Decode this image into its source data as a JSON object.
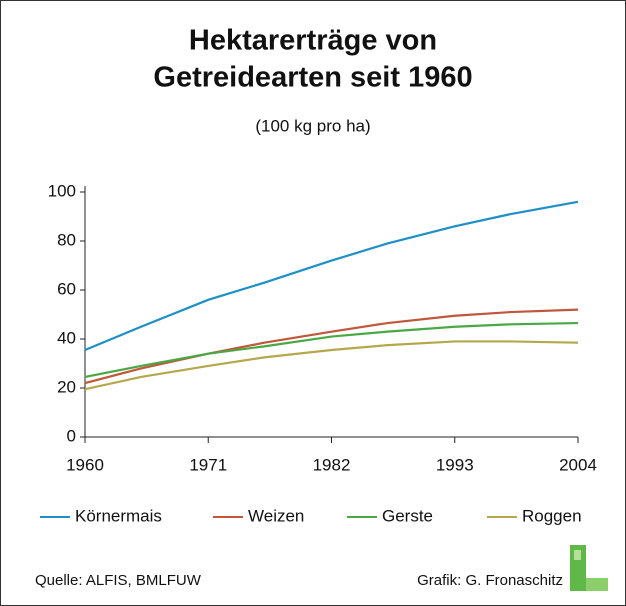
{
  "chart_data": {
    "type": "line",
    "title": [
      "Hektarerträge von",
      "Getreidearten seit 1960"
    ],
    "subtitle": "(100 kg pro ha)",
    "x": [
      1960,
      1965,
      1971,
      1976,
      1982,
      1987,
      1993,
      1998,
      2004
    ],
    "series": [
      {
        "name": "Körnermais",
        "color": "#1f8fc8",
        "values": [
          35.5,
          45,
          56,
          63,
          72,
          79,
          86,
          91,
          96
        ]
      },
      {
        "name": "Weizen",
        "color": "#c0573a",
        "values": [
          22,
          28,
          34,
          38.5,
          43,
          46.5,
          49.5,
          51,
          52
        ]
      },
      {
        "name": "Gerste",
        "color": "#4aa844",
        "values": [
          24.5,
          29,
          34,
          37,
          41,
          43,
          45,
          46,
          46.5
        ]
      },
      {
        "name": "Roggen",
        "color": "#b5a84c",
        "values": [
          19.5,
          24.5,
          29,
          32.5,
          35.5,
          37.5,
          39,
          39,
          38.5
        ]
      }
    ],
    "xlim": [
      1960,
      2004
    ],
    "xticks": [
      1960,
      1971,
      1982,
      1993,
      2004
    ],
    "ylim": [
      0,
      100
    ],
    "yticks": [
      0,
      20,
      40,
      60,
      80,
      100
    ],
    "source": "Quelle: ALFIS, BMLFUW",
    "credit": "Grafik: G. Fronaschitz"
  }
}
